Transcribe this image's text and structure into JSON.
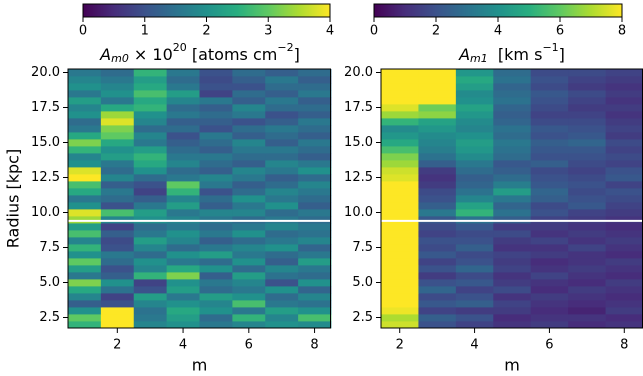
{
  "chart_data": [
    {
      "type": "heatmap",
      "cmap": "viridis",
      "title_parts": [
        "A",
        "m0",
        " × 10",
        "20",
        " [atoms cm",
        "−2",
        "]"
      ],
      "xlabel": "m",
      "ylabel": "Radius [kpc]",
      "x": [
        1,
        2,
        3,
        4,
        5,
        6,
        7,
        8
      ],
      "y": [
        2.0,
        2.5,
        3.0,
        3.5,
        4.0,
        4.5,
        5.0,
        5.5,
        6.0,
        6.5,
        7.0,
        7.5,
        8.0,
        8.5,
        9.0,
        9.5,
        10.0,
        10.5,
        11.0,
        11.5,
        12.0,
        12.5,
        13.0,
        13.5,
        14.0,
        14.5,
        15.0,
        15.5,
        16.0,
        16.5,
        17.0,
        17.5,
        18.0,
        18.5,
        19.0,
        19.5,
        20.0
      ],
      "z": [
        [
          2.6,
          4.0,
          1.8,
          2.0,
          1.6,
          1.8,
          2.0,
          1.9
        ],
        [
          3.0,
          4.0,
          1.6,
          2.2,
          1.4,
          2.6,
          1.8,
          2.8
        ],
        [
          2.0,
          4.0,
          1.5,
          2.4,
          2.0,
          1.6,
          2.2,
          2.0
        ],
        [
          1.2,
          1.0,
          1.8,
          2.0,
          1.8,
          2.8,
          1.6,
          1.5
        ],
        [
          1.8,
          0.8,
          2.2,
          1.6,
          2.2,
          2.0,
          1.4,
          1.8
        ],
        [
          2.4,
          1.5,
          1.0,
          2.2,
          1.4,
          1.6,
          2.0,
          1.3
        ],
        [
          3.2,
          2.0,
          0.8,
          2.0,
          1.6,
          1.8,
          1.0,
          2.0
        ],
        [
          1.6,
          1.2,
          2.6,
          3.2,
          1.2,
          2.2,
          1.5,
          1.4
        ],
        [
          2.2,
          1.0,
          1.8,
          2.4,
          2.0,
          1.4,
          1.8,
          1.6
        ],
        [
          3.0,
          1.4,
          2.0,
          1.6,
          1.4,
          2.0,
          1.2,
          2.2
        ],
        [
          2.0,
          1.6,
          1.4,
          2.0,
          2.2,
          1.6,
          1.4,
          1.6
        ],
        [
          2.6,
          1.0,
          1.8,
          1.4,
          1.6,
          1.8,
          2.0,
          1.3
        ],
        [
          1.8,
          0.9,
          2.2,
          1.8,
          1.2,
          1.4,
          1.6,
          1.8
        ],
        [
          2.8,
          1.2,
          1.6,
          2.0,
          1.6,
          2.0,
          1.4,
          1.5
        ],
        [
          2.2,
          0.8,
          1.4,
          1.6,
          1.4,
          1.6,
          1.8,
          1.6
        ],
        [
          3.4,
          1.8,
          2.0,
          1.8,
          1.6,
          1.4,
          1.6,
          1.4
        ],
        [
          3.8,
          2.8,
          2.2,
          1.6,
          1.8,
          1.8,
          1.4,
          1.6
        ],
        [
          2.0,
          1.0,
          1.6,
          2.2,
          1.2,
          1.6,
          2.0,
          1.2
        ],
        [
          1.6,
          1.4,
          1.2,
          1.8,
          1.4,
          2.0,
          1.6,
          1.4
        ],
        [
          2.4,
          1.6,
          0.8,
          2.6,
          1.0,
          1.4,
          1.8,
          1.6
        ],
        [
          2.8,
          1.2,
          1.0,
          3.0,
          1.6,
          1.2,
          1.4,
          1.8
        ],
        [
          4.0,
          1.8,
          1.4,
          1.6,
          1.8,
          1.6,
          1.2,
          1.4
        ],
        [
          3.8,
          1.4,
          2.0,
          1.4,
          1.2,
          1.8,
          1.6,
          2.0
        ],
        [
          2.0,
          1.6,
          2.4,
          1.8,
          1.4,
          1.2,
          1.8,
          1.6
        ],
        [
          1.8,
          2.2,
          2.6,
          1.6,
          1.6,
          1.4,
          1.4,
          1.2
        ],
        [
          2.6,
          2.0,
          2.2,
          1.4,
          1.2,
          1.6,
          1.6,
          1.4
        ],
        [
          3.2,
          2.4,
          1.6,
          1.2,
          1.4,
          1.8,
          1.2,
          1.6
        ],
        [
          2.4,
          3.0,
          1.8,
          1.0,
          1.6,
          1.2,
          1.4,
          1.2
        ],
        [
          1.6,
          3.2,
          1.4,
          1.4,
          1.0,
          1.4,
          1.6,
          1.4
        ],
        [
          1.4,
          3.8,
          1.8,
          1.2,
          1.2,
          1.0,
          1.2,
          1.6
        ],
        [
          2.0,
          3.4,
          2.0,
          1.6,
          1.4,
          1.6,
          1.0,
          1.2
        ],
        [
          1.8,
          2.4,
          2.6,
          1.4,
          1.2,
          1.8,
          1.4,
          1.4
        ],
        [
          2.2,
          1.6,
          2.4,
          1.8,
          1.6,
          1.2,
          1.6,
          1.2
        ],
        [
          1.6,
          2.0,
          2.8,
          2.2,
          0.8,
          1.4,
          1.2,
          1.6
        ],
        [
          2.0,
          1.8,
          2.4,
          1.6,
          1.0,
          1.0,
          1.4,
          1.4
        ],
        [
          1.8,
          1.6,
          2.2,
          1.4,
          0.9,
          1.2,
          1.6,
          1.2
        ],
        [
          1.6,
          1.4,
          2.6,
          1.6,
          1.0,
          1.4,
          1.2,
          1.4
        ]
      ],
      "xlim": [
        0.5,
        8.5
      ],
      "ylim": [
        1.75,
        20.25
      ],
      "xticks": [
        2,
        4,
        6,
        8
      ],
      "yticks": [
        2.5,
        {
          "value": 5,
          "label": "5.0"
        },
        7.5,
        {
          "value": 10,
          "label": "10.0"
        },
        12.5,
        {
          "value": 15,
          "label": "15.0"
        },
        17.5,
        {
          "value": 20,
          "label": "20.0"
        }
      ],
      "clim": [
        0,
        4
      ],
      "cticks": [
        0,
        1,
        2,
        3,
        4
      ],
      "hline": 9.4
    },
    {
      "type": "heatmap",
      "cmap": "viridis",
      "title_parts": [
        "A",
        "m1",
        "  [km s",
        "−1",
        "]"
      ],
      "xlabel": "m",
      "x": [
        2,
        3,
        4,
        5,
        6,
        7,
        8
      ],
      "y": [
        2.0,
        2.5,
        3.0,
        3.5,
        4.0,
        4.5,
        5.0,
        5.5,
        6.0,
        6.5,
        7.0,
        7.5,
        8.0,
        8.5,
        9.0,
        9.5,
        10.0,
        10.5,
        11.0,
        11.5,
        12.0,
        12.5,
        13.0,
        13.5,
        14.0,
        14.5,
        15.0,
        15.5,
        16.0,
        16.5,
        17.0,
        17.5,
        18.0,
        18.5,
        19.0,
        19.5,
        20.0
      ],
      "z": [
        [
          7.4,
          2.0,
          1.6,
          1.2,
          1.4,
          1.0,
          1.2
        ],
        [
          7.0,
          2.4,
          2.0,
          1.0,
          1.2,
          1.2,
          1.0
        ],
        [
          7.8,
          1.6,
          1.4,
          1.4,
          1.0,
          0.8,
          1.4
        ],
        [
          8.0,
          2.2,
          2.4,
          1.6,
          1.2,
          1.0,
          1.2
        ],
        [
          8.0,
          1.8,
          2.0,
          1.2,
          1.4,
          1.2,
          1.0
        ],
        [
          8.0,
          2.6,
          1.6,
          1.8,
          1.0,
          1.4,
          1.2
        ],
        [
          8.0,
          2.0,
          2.2,
          1.4,
          1.2,
          1.0,
          1.4
        ],
        [
          8.0,
          1.4,
          1.8,
          1.2,
          1.6,
          1.2,
          1.0
        ],
        [
          8.0,
          2.0,
          2.6,
          1.6,
          1.2,
          1.4,
          1.2
        ],
        [
          8.0,
          1.6,
          2.0,
          1.4,
          1.0,
          1.2,
          1.4
        ],
        [
          8.0,
          2.2,
          1.8,
          1.6,
          1.4,
          1.2,
          1.0
        ],
        [
          8.0,
          1.8,
          2.4,
          1.2,
          1.2,
          1.6,
          1.2
        ],
        [
          8.0,
          2.0,
          2.0,
          1.4,
          1.6,
          1.2,
          1.4
        ],
        [
          8.0,
          1.6,
          1.8,
          1.8,
          1.2,
          1.4,
          1.2
        ],
        [
          8.0,
          1.8,
          2.2,
          1.4,
          1.4,
          1.2,
          1.0
        ],
        [
          8.0,
          2.2,
          3.0,
          2.4,
          1.6,
          1.4,
          1.2
        ],
        [
          8.0,
          3.2,
          5.2,
          3.0,
          2.0,
          1.6,
          1.4
        ],
        [
          8.0,
          2.4,
          4.6,
          2.6,
          1.8,
          2.2,
          1.6
        ],
        [
          8.0,
          2.0,
          3.6,
          3.2,
          2.4,
          2.0,
          1.8
        ],
        [
          8.0,
          1.8,
          3.0,
          4.4,
          2.6,
          1.8,
          2.0
        ],
        [
          8.0,
          1.4,
          2.6,
          3.4,
          2.2,
          2.0,
          1.6
        ],
        [
          7.6,
          1.2,
          2.4,
          2.8,
          2.0,
          1.8,
          2.2
        ],
        [
          7.4,
          1.4,
          2.8,
          2.4,
          1.8,
          1.6,
          2.0
        ],
        [
          6.8,
          2.4,
          3.2,
          2.2,
          2.4,
          1.8,
          1.6
        ],
        [
          6.4,
          3.0,
          3.8,
          2.8,
          2.0,
          2.0,
          1.8
        ],
        [
          5.6,
          3.4,
          4.2,
          3.0,
          2.2,
          2.2,
          1.6
        ],
        [
          4.8,
          3.6,
          4.4,
          3.2,
          2.4,
          2.6,
          1.8
        ],
        [
          4.2,
          3.8,
          4.0,
          2.8,
          2.0,
          2.2,
          1.4
        ],
        [
          3.8,
          4.2,
          3.6,
          3.0,
          2.2,
          2.0,
          1.6
        ],
        [
          5.2,
          4.6,
          3.8,
          2.6,
          1.8,
          1.8,
          1.4
        ],
        [
          6.8,
          6.6,
          4.2,
          2.4,
          1.6,
          1.6,
          1.2
        ],
        [
          7.6,
          6.2,
          4.6,
          2.6,
          1.8,
          1.4,
          1.4
        ],
        [
          8.0,
          8.0,
          4.0,
          3.0,
          2.0,
          1.6,
          1.2
        ],
        [
          8.0,
          8.0,
          3.8,
          2.8,
          2.2,
          1.8,
          1.4
        ],
        [
          8.0,
          8.0,
          4.4,
          2.6,
          1.8,
          1.4,
          1.2
        ],
        [
          8.0,
          8.0,
          4.8,
          3.0,
          2.0,
          1.6,
          1.4
        ],
        [
          8.0,
          8.0,
          4.2,
          2.8,
          1.8,
          1.8,
          1.6
        ]
      ],
      "xlim": [
        1.5,
        8.5
      ],
      "ylim": [
        1.75,
        20.25
      ],
      "xticks": [
        2,
        4,
        6,
        8
      ],
      "yticks": [
        2.5,
        {
          "value": 5,
          "label": "5.0"
        },
        7.5,
        {
          "value": 10,
          "label": "10.0"
        },
        12.5,
        {
          "value": 15,
          "label": "15.0"
        },
        17.5,
        {
          "value": 20,
          "label": "20.0"
        }
      ],
      "clim": [
        0,
        8
      ],
      "cticks": [
        0,
        2,
        4,
        6,
        8
      ],
      "hline": 9.4
    }
  ]
}
